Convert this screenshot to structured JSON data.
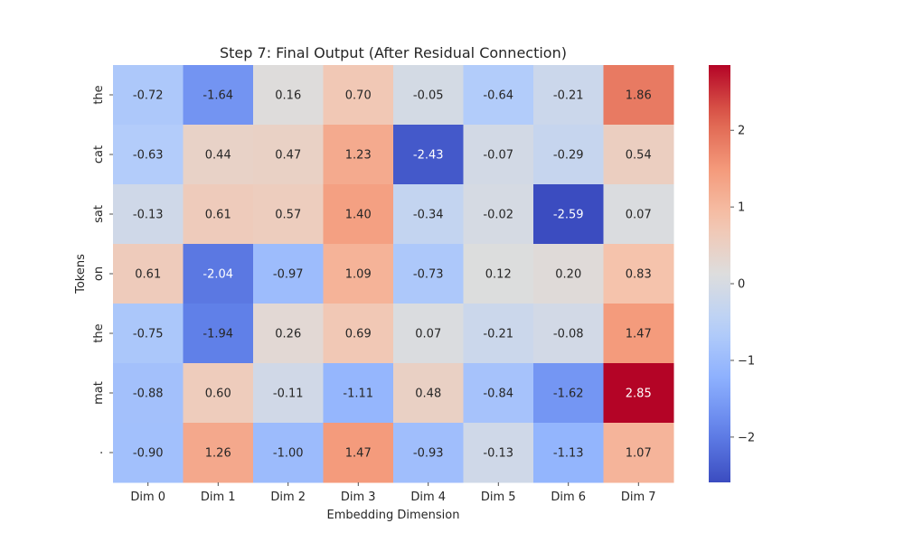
{
  "chart_data": {
    "type": "heatmap",
    "title": "Step 7: Final Output (After Residual Connection)",
    "xlabel": "Embedding Dimension",
    "ylabel": "Tokens",
    "x_categories": [
      "Dim 0",
      "Dim 1",
      "Dim 2",
      "Dim 3",
      "Dim 4",
      "Dim 5",
      "Dim 6",
      "Dim 7"
    ],
    "y_categories": [
      "the",
      "cat",
      "sat",
      "on",
      "the",
      "mat",
      "."
    ],
    "values": [
      [
        -0.72,
        -1.64,
        0.16,
        0.7,
        -0.05,
        -0.64,
        -0.21,
        1.86
      ],
      [
        -0.63,
        0.44,
        0.47,
        1.23,
        -2.43,
        -0.07,
        -0.29,
        0.54
      ],
      [
        -0.13,
        0.61,
        0.57,
        1.4,
        -0.34,
        -0.02,
        -2.59,
        0.07
      ],
      [
        0.61,
        -2.04,
        -0.97,
        1.09,
        -0.73,
        0.12,
        0.2,
        0.83
      ],
      [
        -0.75,
        -1.94,
        0.26,
        0.69,
        0.07,
        -0.21,
        -0.08,
        1.47
      ],
      [
        -0.88,
        0.6,
        -0.11,
        -1.11,
        0.48,
        -0.84,
        -1.62,
        2.85
      ],
      [
        -0.9,
        1.26,
        -1.0,
        1.47,
        -0.93,
        -0.13,
        -1.13,
        1.07
      ]
    ],
    "value_format_decimals": 2,
    "colormap": "coolwarm",
    "vmin": -2.59,
    "vmax": 2.85,
    "colorbar_ticks": [
      -2,
      -1,
      0,
      1,
      2
    ],
    "annotated": true,
    "grid": false
  }
}
